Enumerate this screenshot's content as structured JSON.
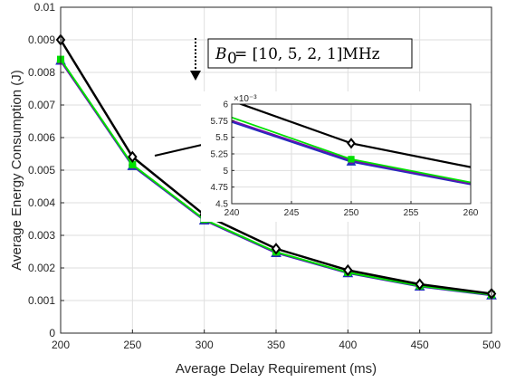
{
  "chart_data": {
    "type": "line",
    "xlabel": "Average Delay Requirement (ms)",
    "ylabel": "Average Energy Consumption (J)",
    "xlim": [
      200,
      500
    ],
    "ylim": [
      0,
      0.01
    ],
    "x_ticks": [
      "200",
      "250",
      "300",
      "350",
      "400",
      "450",
      "500"
    ],
    "y_ticks": [
      "0",
      "0.001",
      "0.002",
      "0.003",
      "0.004",
      "0.005",
      "0.006",
      "0.007",
      "0.008",
      "0.009",
      "0.01"
    ],
    "grid": true,
    "x": [
      200,
      250,
      300,
      350,
      400,
      450,
      500
    ],
    "series": [
      {
        "color": "#000000",
        "marker": "diamond",
        "values": [
          0.009,
          0.00541,
          0.00363,
          0.00259,
          0.00193,
          0.0015,
          0.00121
        ]
      },
      {
        "color": "#1f2fbf",
        "marker": "triangle",
        "values": [
          0.00836,
          0.00513,
          0.00346,
          0.00246,
          0.00184,
          0.00143,
          0.00116
        ]
      },
      {
        "color": "#6a0dad",
        "marker": "circle",
        "values": [
          0.00835,
          0.00515,
          0.00347,
          0.00247,
          0.00185,
          0.00144,
          0.00117
        ]
      },
      {
        "color": "#00e000",
        "marker": "square",
        "values": [
          0.0084,
          0.00517,
          0.00349,
          0.00249,
          0.00186,
          0.00145,
          0.00118
        ]
      }
    ],
    "annotation": {
      "text": "B_0 = [10, 5, 2, 1]MHz",
      "arrow_direction": "down"
    },
    "inset": {
      "xlim": [
        240,
        260
      ],
      "ylim": [
        4.5,
        6
      ],
      "x_ticks": [
        "240",
        "245",
        "250",
        "255",
        "260"
      ],
      "y_ticks": [
        "4.5",
        "4.75",
        "5",
        "5.25",
        "5.5",
        "5.75",
        "6"
      ],
      "exponent_label": "×10⁻³",
      "series": [
        {
          "color": "#000000",
          "marker": "diamond",
          "values": [
            6.05,
            5.41,
            5.05
          ]
        },
        {
          "color": "#1f2fbf",
          "marker": "triangle",
          "values": [
            5.73,
            5.13,
            4.79
          ]
        },
        {
          "color": "#6a0dad",
          "marker": "circle",
          "values": [
            5.75,
            5.15,
            4.8
          ]
        },
        {
          "color": "#00e000",
          "marker": "square",
          "values": [
            5.8,
            5.17,
            4.82
          ]
        }
      ],
      "x": [
        240,
        250,
        260
      ]
    }
  }
}
